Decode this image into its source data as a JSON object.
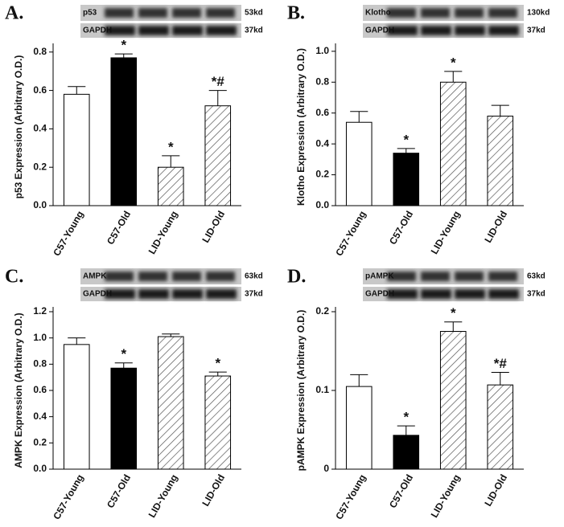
{
  "chart_data": [
    {
      "type": "bar",
      "panel": "A.",
      "ylabel": "p53 Expression (Arbitrary O.D.)",
      "blot": {
        "top": "p53",
        "top_size": "53kd",
        "bottom": "GAPDH",
        "bottom_size": "37kd"
      },
      "categories": [
        "C57-Young",
        "C57-Old",
        "LID-Young",
        "LID-Old"
      ],
      "values": [
        0.58,
        0.77,
        0.2,
        0.52
      ],
      "errors": [
        0.04,
        0.02,
        0.06,
        0.08
      ],
      "annotations": [
        null,
        "*",
        "*",
        "*#"
      ],
      "colors": [
        "#ffffff",
        "#000000",
        "#ffffff",
        "#ffffff"
      ],
      "hatched": [
        false,
        false,
        true,
        true
      ],
      "ylim": [
        0,
        0.82
      ],
      "yticks": [
        {
          "value": 0,
          "label": "0.0"
        },
        0.2,
        0.4,
        0.6,
        0.8
      ]
    },
    {
      "type": "bar",
      "panel": "B.",
      "ylabel": "Klotho Expression (Arbitrary O.D.)",
      "blot": {
        "top": "Klotho",
        "top_size": "130kd",
        "bottom": "GAPDH",
        "bottom_size": "37kd"
      },
      "categories": [
        "C57-Young",
        "C57-Old",
        "LID-Young",
        "LID-Old"
      ],
      "values": [
        0.54,
        0.34,
        0.8,
        0.58
      ],
      "errors": [
        0.07,
        0.03,
        0.07,
        0.07
      ],
      "annotations": [
        null,
        "*",
        "*",
        null
      ],
      "colors": [
        "#ffffff",
        "#000000",
        "#ffffff",
        "#ffffff"
      ],
      "hatched": [
        false,
        false,
        true,
        true
      ],
      "ylim": [
        0,
        1.02
      ],
      "yticks": [
        {
          "value": 0,
          "label": "0.0"
        },
        0.2,
        0.4,
        0.6,
        0.8,
        {
          "value": 1,
          "label": "1.0"
        }
      ]
    },
    {
      "type": "bar",
      "panel": "C.",
      "ylabel": "AMPK Expression (Arbitrary O.D.)",
      "blot": {
        "top": "AMPK",
        "top_size": "63kd",
        "bottom": "GAPDH",
        "bottom_size": "37kd"
      },
      "categories": [
        "C57-Young",
        "C57-Old",
        "LID-Young",
        "LID-Old"
      ],
      "values": [
        0.95,
        0.77,
        1.01,
        0.71
      ],
      "errors": [
        0.05,
        0.04,
        0.02,
        0.03
      ],
      "annotations": [
        null,
        "*",
        null,
        "*"
      ],
      "colors": [
        "#ffffff",
        "#000000",
        "#ffffff",
        "#ffffff"
      ],
      "hatched": [
        false,
        false,
        true,
        true
      ],
      "ylim": [
        0,
        1.2
      ],
      "yticks": [
        {
          "value": 0,
          "label": "0.0"
        },
        0.2,
        0.4,
        0.6,
        0.8,
        {
          "value": 1,
          "label": "1.0"
        },
        1.2
      ]
    },
    {
      "type": "bar",
      "panel": "D.",
      "ylabel": "pAMPK Expression (Arbitrary O.D.)",
      "blot": {
        "top": "pAMPK",
        "top_size": "63kd",
        "bottom": "GAPDH",
        "bottom_size": "37kd"
      },
      "categories": [
        "C57-Young",
        "C57-Old",
        "LID-Young",
        "LID-Old"
      ],
      "values": [
        0.105,
        0.043,
        0.175,
        0.107
      ],
      "errors": [
        0.015,
        0.012,
        0.012,
        0.016
      ],
      "annotations": [
        null,
        "*",
        "*",
        "*#"
      ],
      "colors": [
        "#ffffff",
        "#000000",
        "#ffffff",
        "#ffffff"
      ],
      "hatched": [
        false,
        false,
        true,
        true
      ],
      "ylim": [
        0,
        0.2
      ],
      "yticks": [
        0,
        0.1,
        0.2
      ]
    }
  ]
}
